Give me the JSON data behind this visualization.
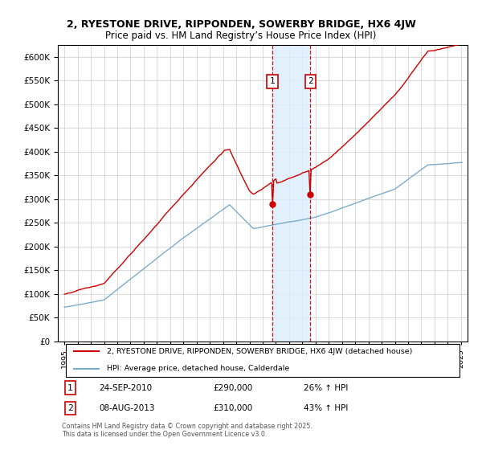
{
  "title": "2, RYESTONE DRIVE, RIPPONDEN, SOWERBY BRIDGE, HX6 4JW",
  "subtitle": "Price paid vs. HM Land Registry’s House Price Index (HPI)",
  "legend_line1": "2, RYESTONE DRIVE, RIPPONDEN, SOWERBY BRIDGE, HX6 4JW (detached house)",
  "legend_line2": "HPI: Average price, detached house, Calderdale",
  "sale1_date": "24-SEP-2010",
  "sale1_price": 290000,
  "sale1_label": "26% ↑ HPI",
  "sale2_date": "08-AUG-2013",
  "sale2_price": 310000,
  "sale2_label": "43% ↑ HPI",
  "sale1_year": 2010.73,
  "sale2_year": 2013.6,
  "ylim": [
    0,
    625000
  ],
  "xlim": [
    1994.5,
    2025.5
  ],
  "yticks": [
    0,
    50000,
    100000,
    150000,
    200000,
    250000,
    300000,
    350000,
    400000,
    450000,
    500000,
    550000,
    600000
  ],
  "copyright": "Contains HM Land Registry data © Crown copyright and database right 2025.\nThis data is licensed under the Open Government Licence v3.0.",
  "red_color": "#cc0000",
  "blue_color": "#7aadcc",
  "shade_color": "#ddeeff",
  "title_fontsize": 9.0,
  "subtitle_fontsize": 8.5
}
